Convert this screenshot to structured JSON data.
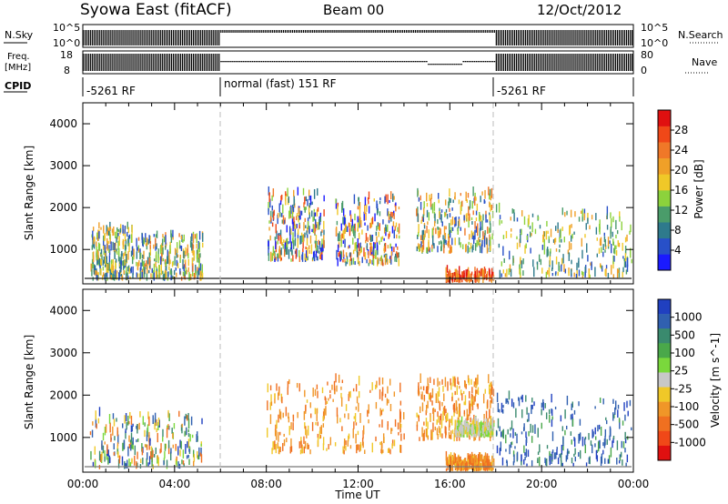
{
  "header": {
    "station": "Syowa East (fitACF)",
    "beam": "Beam 00",
    "date": "12/Oct/2012"
  },
  "strips": {
    "nsky_label": "N.Sky",
    "nsearch_label": "N.Search",
    "freq_label_1": "Freq.",
    "freq_label_2": "[MHz]",
    "nave_label": "Nave",
    "cpid_label": "CPID",
    "sky_ticks": [
      "10^5",
      "10^0"
    ],
    "search_ticks": [
      "10^5",
      "10^0"
    ],
    "freq_ticks": [
      "18",
      "8"
    ],
    "nave_ticks": [
      "80",
      "0"
    ],
    "cpid_segments": [
      {
        "label": "-5261 RF",
        "start": 0,
        "end": 6
      },
      {
        "label": "normal (fast) 151 RF",
        "start": 6,
        "end": 18
      },
      {
        "label": "-5261 RF",
        "start": 18,
        "end": 24
      }
    ]
  },
  "axes": {
    "ylabel": "Slant Range [km]",
    "xlabel": "Time UT",
    "y_ticks": [
      "1000",
      "2000",
      "3000",
      "4000"
    ],
    "x_ticks": [
      "00:00",
      "04:00",
      "08:00",
      "12:00",
      "16:00",
      "20:00",
      "00:00"
    ]
  },
  "power_scale": {
    "label": "Power [dB]",
    "ticks": [
      "4",
      "8",
      "12",
      "16",
      "20",
      "24",
      "28"
    ],
    "colors": [
      "#1a1aff",
      "#2850c8",
      "#2e7a8c",
      "#4a9c6a",
      "#8cd23c",
      "#f0c828",
      "#f0a028",
      "#f07828",
      "#f04818",
      "#e01010"
    ]
  },
  "velocity_scale": {
    "label": "Velocity [m s^-1]",
    "ticks": [
      "1000",
      "500",
      "100",
      "25",
      "-25",
      "-100",
      "-500",
      "-1000"
    ],
    "colors": [
      "#2040c0",
      "#3060b0",
      "#3a8a6e",
      "#4aa84a",
      "#7ad83c",
      "#c8c8c8",
      "#f0c828",
      "#f09628",
      "#f07020",
      "#f04818",
      "#e01010"
    ]
  },
  "chart_data": [
    {
      "type": "heatmap",
      "title": "Power",
      "xlabel": "Time UT",
      "ylabel": "Slant Range [km]",
      "xlim": [
        0,
        24
      ],
      "ylim": [
        180,
        4500
      ],
      "colorbar": {
        "label": "Power [dB]",
        "range": [
          0,
          30
        ]
      },
      "dashed_lines_at_hours": [
        6,
        18
      ],
      "regions": [
        {
          "t0": 0.3,
          "t1": 2.2,
          "r0": 250,
          "r1": 1500,
          "level": "low-mid"
        },
        {
          "t0": 2.3,
          "t1": 5.2,
          "r0": 250,
          "r1": 1300,
          "level": "mid"
        },
        {
          "t0": 8.0,
          "t1": 10.5,
          "r0": 700,
          "r1": 2300,
          "level": "mid-high"
        },
        {
          "t0": 11.0,
          "t1": 13.8,
          "r0": 600,
          "r1": 2200,
          "level": "mid-high"
        },
        {
          "t0": 14.5,
          "t1": 17.9,
          "r0": 900,
          "r1": 2300,
          "level": "mid"
        },
        {
          "t0": 15.8,
          "t1": 17.9,
          "r0": 200,
          "r1": 450,
          "level": "very-high"
        },
        {
          "t0": 18.0,
          "t1": 23.9,
          "r0": 300,
          "r1": 1900,
          "level": "low-mid"
        }
      ]
    },
    {
      "type": "heatmap",
      "title": "Velocity",
      "xlabel": "Time UT",
      "ylabel": "Slant Range [km]",
      "xlim": [
        0,
        24
      ],
      "ylim": [
        180,
        4500
      ],
      "colorbar": {
        "label": "Velocity [m s^-1]",
        "range": [
          -1000,
          1000
        ]
      },
      "dashed_lines_at_hours": [
        6,
        18
      ],
      "regions": [
        {
          "t0": 0.3,
          "t1": 5.2,
          "r0": 250,
          "r1": 1500,
          "sign": "mixed"
        },
        {
          "t0": 8.0,
          "t1": 14.0,
          "r0": 600,
          "r1": 2300,
          "sign": "negative"
        },
        {
          "t0": 14.5,
          "t1": 17.9,
          "r0": 900,
          "r1": 2300,
          "sign": "negative"
        },
        {
          "t0": 16.2,
          "t1": 17.9,
          "r0": 1000,
          "r1": 1300,
          "sign": "near-zero"
        },
        {
          "t0": 15.8,
          "t1": 17.9,
          "r0": 200,
          "r1": 450,
          "sign": "negative"
        },
        {
          "t0": 18.0,
          "t1": 23.9,
          "r0": 300,
          "r1": 1900,
          "sign": "positive"
        }
      ]
    }
  ]
}
